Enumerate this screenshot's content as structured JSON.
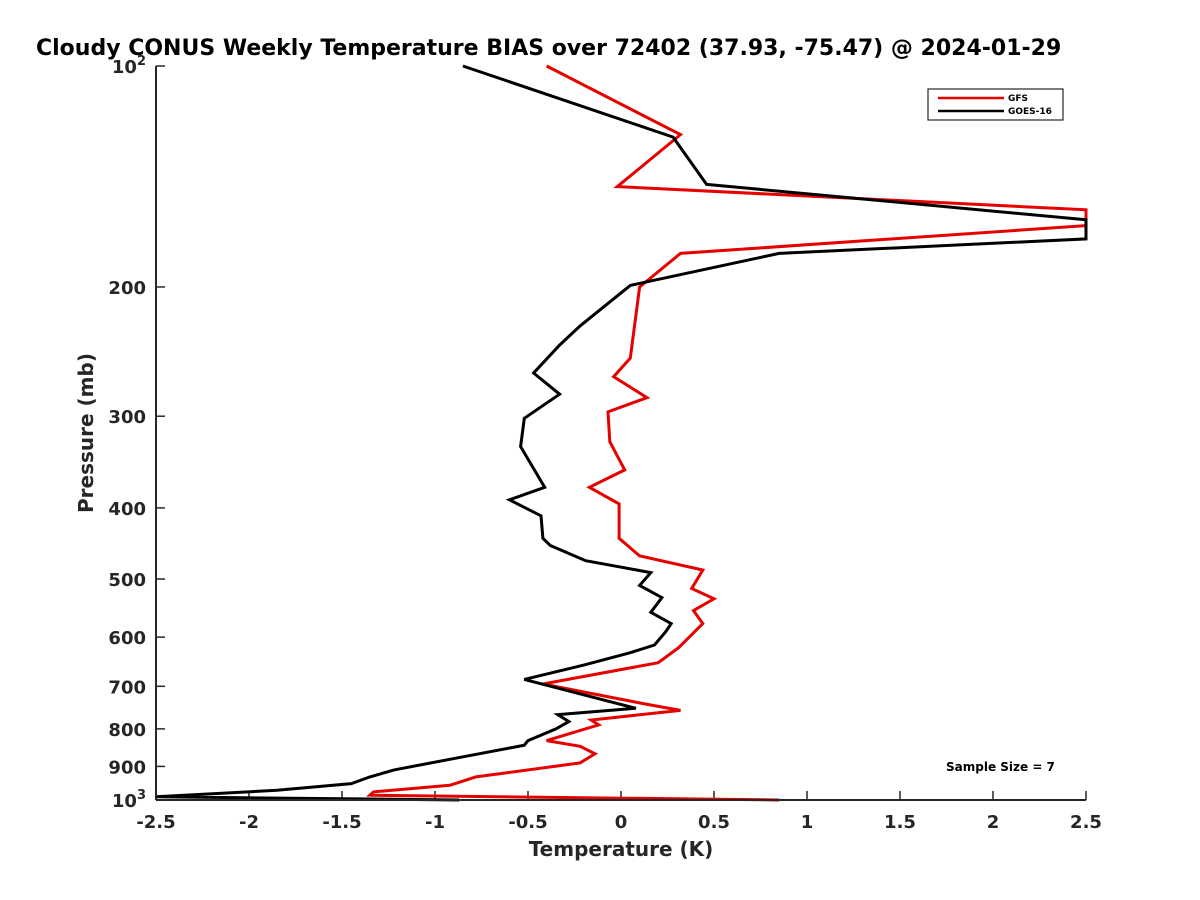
{
  "chart_data": {
    "type": "line",
    "title": "Cloudy CONUS Weekly Temperature BIAS over 72402 (37.93, -75.47) @ 2024-01-29",
    "xlabel": "Temperature (K)",
    "ylabel": "Pressure (mb)",
    "xlim": [
      -2.5,
      2.5
    ],
    "ylim": [
      100,
      1000
    ],
    "y_scale": "log",
    "y_reversed": true,
    "x_ticks": [
      "-2.5",
      "-2",
      "-1.5",
      "-1",
      "-0.5",
      "0",
      "0.5",
      "1",
      "1.5",
      "2",
      "2.5"
    ],
    "y_ticks": [
      {
        "value": 100,
        "base": "10",
        "exp": "2"
      },
      {
        "value": 200,
        "label": "200"
      },
      {
        "value": 300,
        "label": "300"
      },
      {
        "value": 400,
        "label": "400"
      },
      {
        "value": 500,
        "label": "500"
      },
      {
        "value": 600,
        "label": "600"
      },
      {
        "value": 700,
        "label": "700"
      },
      {
        "value": 800,
        "label": "800"
      },
      {
        "value": 900,
        "label": "900"
      },
      {
        "value": 1000,
        "base": "10",
        "exp": "3"
      }
    ],
    "legend": {
      "position": "top-right"
    },
    "annotation": "Sample Size = 7",
    "series": [
      {
        "name": "GFS",
        "color": "#e60000",
        "points": [
          [
            -0.4,
            100
          ],
          [
            0.32,
            124
          ],
          [
            -0.02,
            146
          ],
          [
            2.5,
            157
          ],
          [
            2.5,
            165
          ],
          [
            0.32,
            180
          ],
          [
            0.1,
            200
          ],
          [
            0.05,
            250
          ],
          [
            -0.04,
            265
          ],
          [
            0.14,
            283
          ],
          [
            -0.07,
            296
          ],
          [
            -0.06,
            325
          ],
          [
            0.02,
            355
          ],
          [
            -0.17,
            375
          ],
          [
            -0.01,
            395
          ],
          [
            -0.01,
            440
          ],
          [
            0.1,
            465
          ],
          [
            0.44,
            486
          ],
          [
            0.38,
            515
          ],
          [
            0.5,
            532
          ],
          [
            0.39,
            552
          ],
          [
            0.44,
            575
          ],
          [
            0.31,
            620
          ],
          [
            0.2,
            650
          ],
          [
            -0.42,
            695
          ],
          [
            0.13,
            740
          ],
          [
            0.32,
            755
          ],
          [
            -0.16,
            778
          ],
          [
            -0.12,
            790
          ],
          [
            -0.4,
            830
          ],
          [
            -0.22,
            845
          ],
          [
            -0.14,
            865
          ],
          [
            -0.22,
            890
          ],
          [
            -0.78,
            930
          ],
          [
            -0.92,
            955
          ],
          [
            -1.33,
            975
          ],
          [
            -1.35,
            985
          ],
          [
            0.85,
            1000
          ]
        ]
      },
      {
        "name": "GOES-16",
        "color": "#000000",
        "points": [
          [
            -0.85,
            100
          ],
          [
            0.28,
            125
          ],
          [
            0.46,
            145
          ],
          [
            2.5,
            162
          ],
          [
            2.5,
            172
          ],
          [
            0.85,
            180
          ],
          [
            0.05,
            199
          ],
          [
            -0.22,
            226
          ],
          [
            -0.33,
            240
          ],
          [
            -0.47,
            262
          ],
          [
            -0.33,
            280
          ],
          [
            -0.52,
            302
          ],
          [
            -0.54,
            330
          ],
          [
            -0.41,
            375
          ],
          [
            -0.6,
            390
          ],
          [
            -0.43,
            410
          ],
          [
            -0.42,
            440
          ],
          [
            -0.38,
            450
          ],
          [
            -0.19,
            472
          ],
          [
            0.16,
            490
          ],
          [
            0.1,
            510
          ],
          [
            0.22,
            530
          ],
          [
            0.16,
            555
          ],
          [
            0.27,
            575
          ],
          [
            0.24,
            590
          ],
          [
            0.18,
            615
          ],
          [
            0.05,
            630
          ],
          [
            -0.2,
            655
          ],
          [
            -0.52,
            685
          ],
          [
            -0.1,
            730
          ],
          [
            0.08,
            750
          ],
          [
            -0.34,
            765
          ],
          [
            -0.28,
            782
          ],
          [
            -0.35,
            800
          ],
          [
            -0.5,
            830
          ],
          [
            -0.52,
            842
          ],
          [
            -0.92,
            880
          ],
          [
            -1.22,
            910
          ],
          [
            -1.35,
            930
          ],
          [
            -1.45,
            950
          ],
          [
            -1.85,
            970
          ],
          [
            -2.5,
            990
          ],
          [
            -0.87,
            1000
          ]
        ]
      }
    ]
  }
}
